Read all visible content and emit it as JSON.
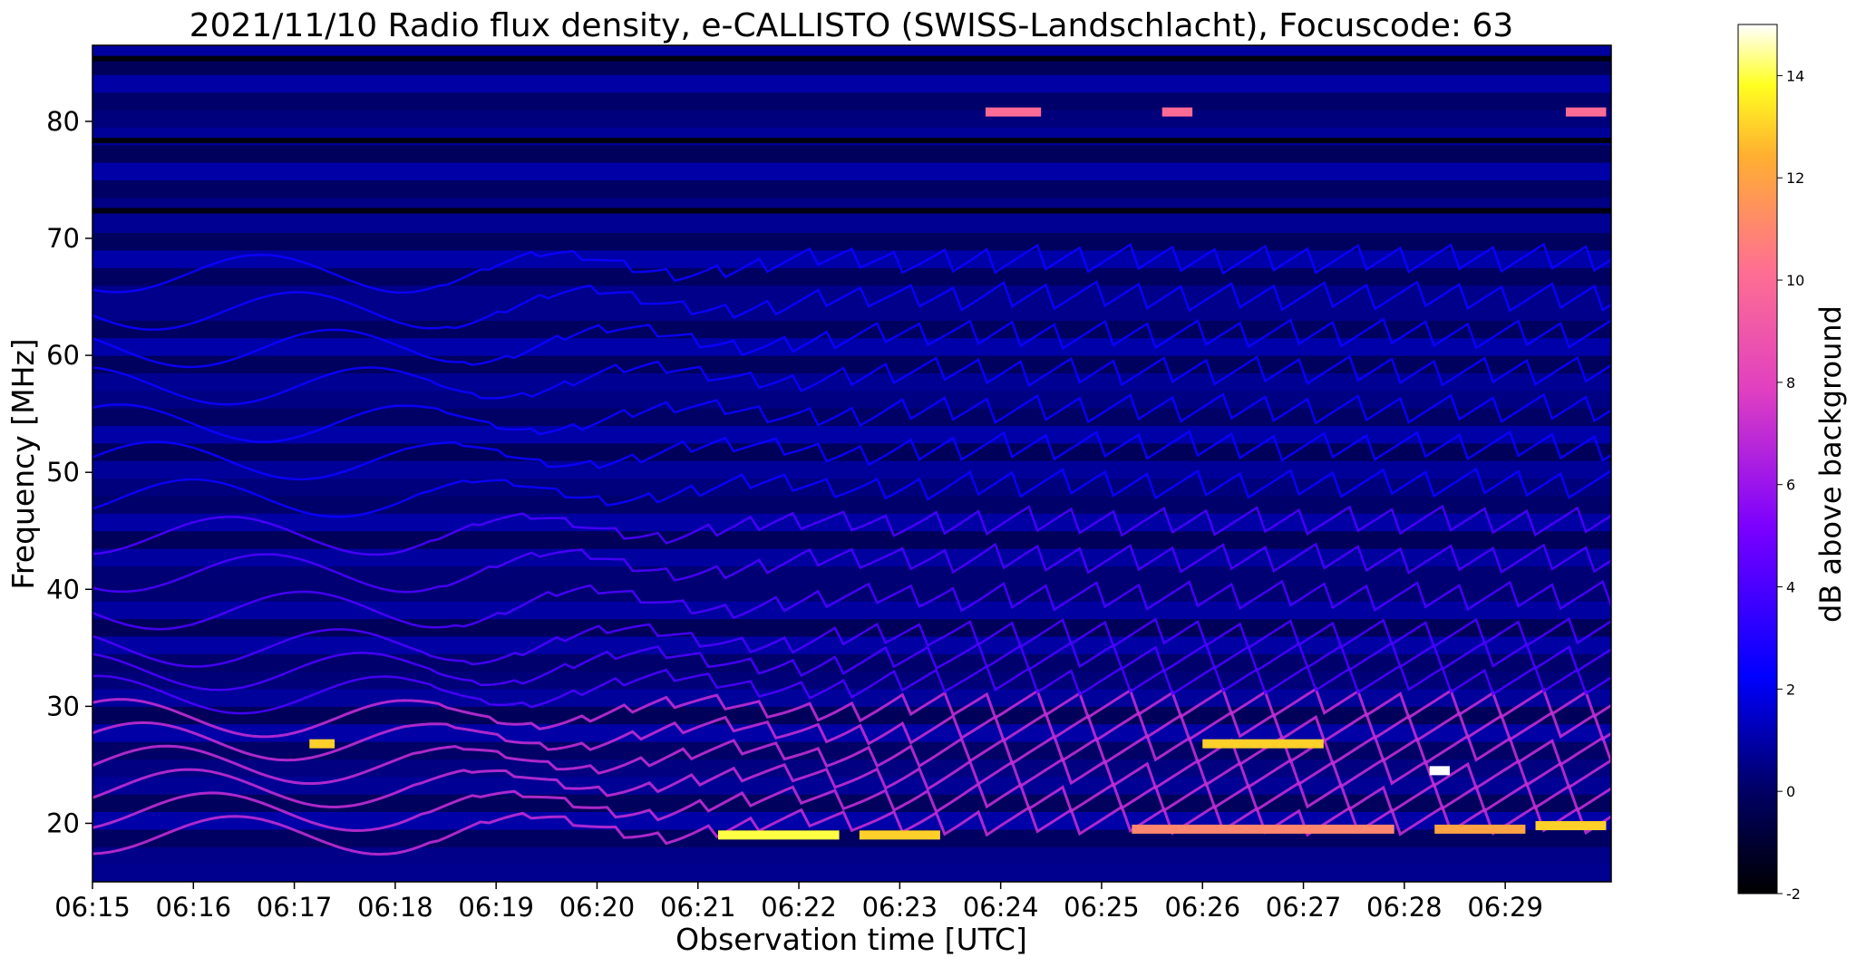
{
  "chart_data": {
    "type": "heatmap",
    "title": "2021/11/10  Radio flux density, e-CALLISTO (SWISS-Landschlacht), Focuscode: 63",
    "xlabel": "Observation time [UTC]",
    "ylabel": "Frequency [MHz]",
    "x_ticks": [
      "06:15",
      "06:16",
      "06:17",
      "06:18",
      "06:19",
      "06:20",
      "06:21",
      "06:22",
      "06:23",
      "06:24",
      "06:25",
      "06:26",
      "06:27",
      "06:28",
      "06:29"
    ],
    "x_tick_minutes": [
      0,
      1,
      2,
      3,
      4,
      5,
      6,
      7,
      8,
      9,
      10,
      11,
      12,
      13,
      14
    ],
    "xlim_minutes": [
      0,
      15.05
    ],
    "y_ticks": [
      20,
      30,
      40,
      50,
      60,
      70,
      80
    ],
    "ylim": [
      15,
      86.5
    ],
    "colorbar": {
      "label": "dB above background",
      "range": [
        -2,
        15
      ],
      "ticks": [
        -2,
        0,
        2,
        4,
        6,
        8,
        10,
        12,
        14
      ],
      "colormap": "gnuplot2"
    },
    "features": [
      {
        "kind": "band-diagonal",
        "description": "quasi-periodic drifting lanes",
        "t_range": [
          0,
          15.05
        ],
        "f_range": [
          15,
          86.5
        ]
      },
      {
        "kind": "hot-segment",
        "t": [
          6.2,
          7.4
        ],
        "f": 19.0,
        "value": 14
      },
      {
        "kind": "hot-segment",
        "t": [
          7.6,
          8.4
        ],
        "f": 19.0,
        "value": 13
      },
      {
        "kind": "hot-segment",
        "t": [
          10.3,
          12.9
        ],
        "f": 19.5,
        "value": 11
      },
      {
        "kind": "hot-segment",
        "t": [
          13.3,
          14.2
        ],
        "f": 19.5,
        "value": 12
      },
      {
        "kind": "hot-segment",
        "t": [
          14.3,
          15.0
        ],
        "f": 19.8,
        "value": 13
      },
      {
        "kind": "hot-segment",
        "t": [
          11.0,
          12.2
        ],
        "f": 26.8,
        "value": 13
      },
      {
        "kind": "hot-segment",
        "t": [
          2.15,
          2.4
        ],
        "f": 26.8,
        "value": 13
      },
      {
        "kind": "hot-segment",
        "t": [
          13.25,
          13.45
        ],
        "f": 24.5,
        "value": 15
      },
      {
        "kind": "hot-segment",
        "t": [
          8.85,
          9.4
        ],
        "f": 80.8,
        "value": 10
      },
      {
        "kind": "hot-segment",
        "t": [
          10.6,
          10.9
        ],
        "f": 80.8,
        "value": 10
      },
      {
        "kind": "hot-segment",
        "t": [
          14.6,
          15.0
        ],
        "f": 80.8,
        "value": 10
      }
    ]
  },
  "colors": {
    "background": "#000020",
    "accent_low": "#0000ff",
    "accent_mid": "#ff00ff",
    "accent_high": "#ffff40"
  }
}
